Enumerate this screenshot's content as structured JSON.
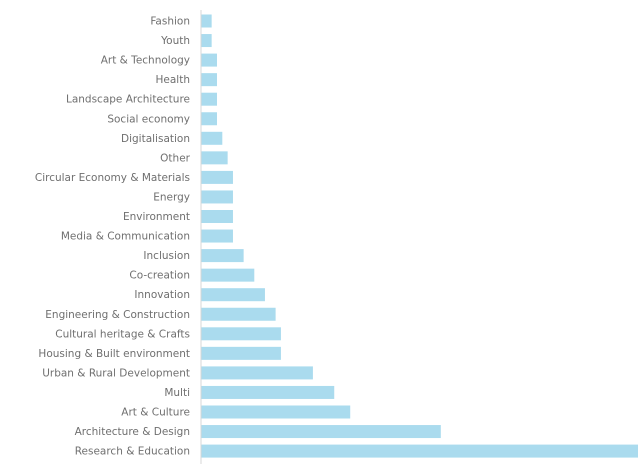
{
  "chart_data": {
    "type": "bar",
    "orientation": "horizontal",
    "title": "",
    "xlabel": "",
    "ylabel": "",
    "grid": false,
    "legend": "none",
    "bar_color": "#aadbee",
    "axis_color": "#d7d7d7",
    "label_color": "#6f6f6f",
    "categories": [
      "Fashion",
      "Youth",
      "Art & Technology",
      "Health",
      "Landscape Architecture",
      "Social economy",
      "Digitalisation",
      "Other",
      "Circular Economy & Materials",
      "Energy",
      "Environment",
      "Media & Communication",
      "Inclusion",
      "Co-creation",
      "Innovation",
      "Engineering & Construction",
      "Cultural heritage & Crafts",
      "Housing & Built environment",
      "Urban & Rural Development",
      "Multi",
      "Art & Culture",
      "Architecture & Design",
      "Research & Education"
    ],
    "values": [
      1,
      1,
      1.5,
      1.5,
      1.5,
      1.5,
      2,
      2.5,
      3,
      3,
      3,
      3,
      4,
      5,
      6,
      7,
      7.5,
      7.5,
      10.5,
      12.5,
      14,
      22.5,
      41
    ],
    "xlim": [
      0,
      41
    ]
  }
}
